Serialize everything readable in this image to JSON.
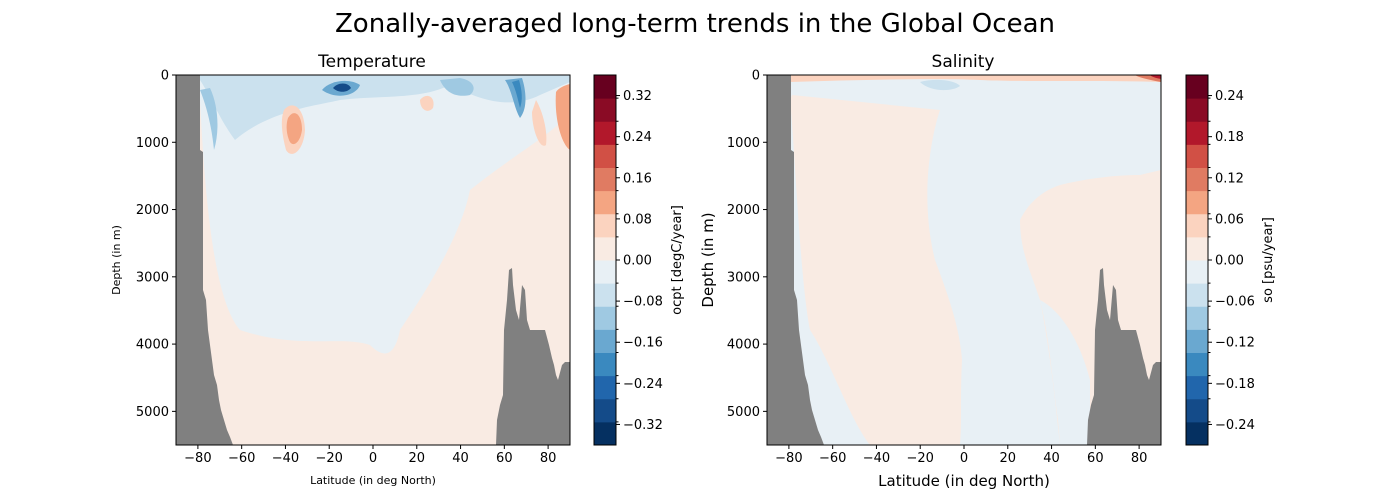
{
  "title": "Zonally-averaged long-term trends in the Global Ocean",
  "colors": {
    "land": "#808080",
    "cmap": [
      "#053061",
      "#144b89",
      "#2166ac",
      "#3a89bf",
      "#6aa8d0",
      "#9fc9e2",
      "#cbe1ee",
      "#e8f0f5",
      "#f9ebe3",
      "#fbd3bf",
      "#f4a582",
      "#e07b62",
      "#d15045",
      "#b2182b",
      "#8a0b25",
      "#67001f"
    ]
  },
  "chart_data": [
    {
      "type": "heatmap",
      "title": "Temperature",
      "xlabel": "Latitude (in deg North)",
      "ylabel": "Depth (in m)",
      "xlim": [
        -90,
        90
      ],
      "ylim": [
        5500,
        0
      ],
      "x_ticks": [
        "−80",
        "−60",
        "−40",
        "−20",
        "0",
        "20",
        "40",
        "60",
        "80"
      ],
      "x_tick_values": [
        -80,
        -60,
        -40,
        -20,
        0,
        20,
        40,
        60,
        80
      ],
      "y_ticks": [
        "0",
        "1000",
        "2000",
        "3000",
        "4000",
        "5000"
      ],
      "y_tick_values": [
        0,
        1000,
        2000,
        3000,
        4000,
        5000
      ],
      "colorbar": {
        "label": "ocpt [degC/year]",
        "range": [
          -0.36,
          0.36
        ],
        "levels": 16,
        "tick_labels": [
          "−0.32",
          "−0.24",
          "−0.16",
          "−0.08",
          "0.00",
          "0.08",
          "0.16",
          "0.24",
          "0.32"
        ],
        "tick_values": [
          -0.32,
          -0.24,
          -0.16,
          -0.08,
          0,
          0.08,
          0.16,
          0.24,
          0.32
        ]
      },
      "features": [
        {
          "lat": -15,
          "depth": 200,
          "value": -0.32
        },
        {
          "lat": 55,
          "depth": 250,
          "value": -0.26
        },
        {
          "lat": -36,
          "depth": 800,
          "value": 0.16
        },
        {
          "lat": 88,
          "depth": 500,
          "value": 0.18
        }
      ]
    },
    {
      "type": "heatmap",
      "title": "Salinity",
      "xlabel": "Latitude (in deg North)",
      "ylabel": "Depth (in m)",
      "xlim": [
        -90,
        90
      ],
      "ylim": [
        5500,
        0
      ],
      "x_ticks": [
        "−80",
        "−60",
        "−40",
        "−20",
        "0",
        "20",
        "40",
        "60",
        "80"
      ],
      "x_tick_values": [
        -80,
        -60,
        -40,
        -20,
        0,
        20,
        40,
        60,
        80
      ],
      "y_ticks": [
        "0",
        "1000",
        "2000",
        "3000",
        "4000",
        "5000"
      ],
      "y_tick_values": [
        0,
        1000,
        2000,
        3000,
        4000,
        5000
      ],
      "colorbar": {
        "label": "so [psu/year]",
        "range": [
          -0.27,
          0.27
        ],
        "levels": 16,
        "tick_labels": [
          "−0.24",
          "−0.18",
          "−0.12",
          "−0.06",
          "0.00",
          "0.06",
          "0.12",
          "0.18",
          "0.24"
        ],
        "tick_values": [
          -0.24,
          -0.18,
          -0.12,
          -0.06,
          0,
          0.06,
          0.12,
          0.18,
          0.24
        ]
      },
      "features": [
        {
          "lat": 88,
          "depth": 20,
          "value": 0.14
        }
      ]
    }
  ]
}
